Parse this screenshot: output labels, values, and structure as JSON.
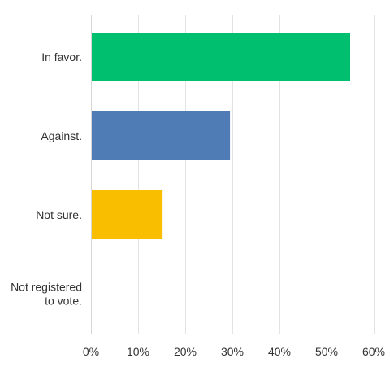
{
  "chart_data": {
    "type": "bar",
    "orientation": "horizontal",
    "categories": [
      "In favor.",
      "Against.",
      "Not sure.",
      "Not registered to vote."
    ],
    "category_label_lines": [
      [
        "In favor."
      ],
      [
        "Against."
      ],
      [
        "Not sure."
      ],
      [
        "Not registered",
        "to vote."
      ]
    ],
    "values": [
      55.0,
      29.5,
      15.2,
      0.0
    ],
    "colors": [
      "#00bf6f",
      "#507cb6",
      "#f9be00",
      "#6bc8cd"
    ],
    "xlim": [
      0,
      60
    ],
    "xticks": [
      0,
      10,
      20,
      30,
      40,
      50,
      60
    ],
    "xtick_labels": [
      "0%",
      "10%",
      "20%",
      "30%",
      "40%",
      "50%",
      "60%"
    ],
    "grid": "vertical",
    "legend": "none"
  }
}
